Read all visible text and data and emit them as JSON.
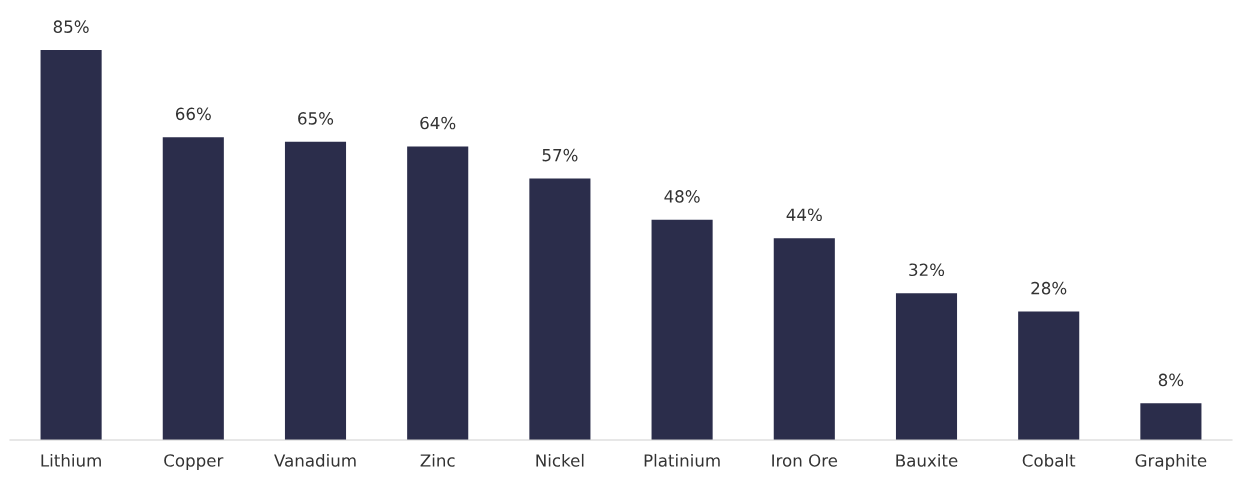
{
  "chart_data": {
    "type": "bar",
    "categories": [
      "Lithium",
      "Copper",
      "Vanadium",
      "Zinc",
      "Nickel",
      "Platinium",
      "Iron Ore",
      "Bauxite",
      "Cobalt",
      "Graphite"
    ],
    "values": [
      85,
      66,
      65,
      64,
      57,
      48,
      44,
      32,
      28,
      8
    ],
    "value_labels": [
      "85%",
      "66%",
      "65%",
      "64%",
      "57%",
      "48%",
      "44%",
      "32%",
      "28%",
      "8%"
    ],
    "color": "#2b2d4b",
    "grid": false,
    "legend": false
  }
}
